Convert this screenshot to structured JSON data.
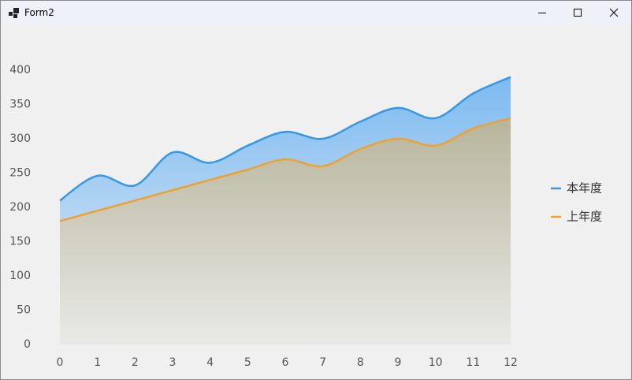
{
  "window": {
    "title": "Form2"
  },
  "chart_data": {
    "type": "area",
    "x": [
      0,
      1,
      2,
      3,
      4,
      5,
      6,
      7,
      8,
      9,
      10,
      11,
      12
    ],
    "xlim": [
      0,
      12
    ],
    "xticks": [
      0,
      1,
      2,
      3,
      4,
      5,
      6,
      7,
      8,
      9,
      10,
      11,
      12
    ],
    "ylim": [
      0,
      400
    ],
    "yticks": [
      0,
      50,
      100,
      150,
      200,
      250,
      300,
      350,
      400
    ],
    "smooth": true,
    "legend": "right",
    "series": [
      {
        "name": "本年度",
        "color": "#3597e6",
        "values": [
          210,
          246,
          232,
          280,
          265,
          290,
          310,
          300,
          325,
          345,
          330,
          366,
          390
        ]
      },
      {
        "name": "上年度",
        "color": "#f0a030",
        "values": [
          180,
          195,
          210,
          225,
          240,
          255,
          270,
          260,
          285,
          300,
          290,
          315,
          330
        ]
      }
    ]
  }
}
